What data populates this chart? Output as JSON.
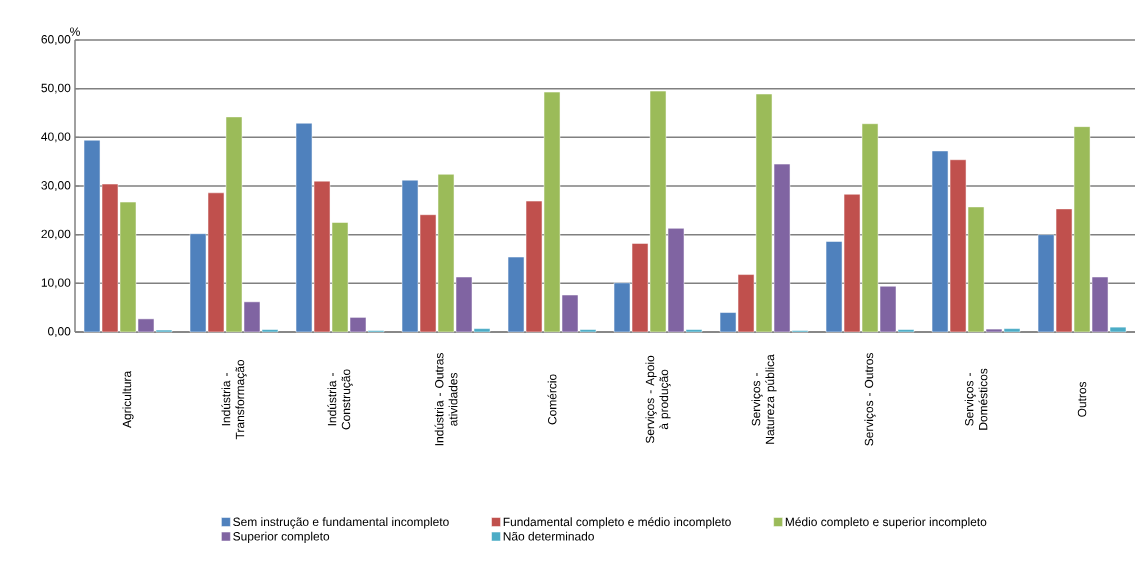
{
  "chart_data": {
    "type": "bar",
    "ylabel": "%",
    "categories": [
      "Agricultura",
      "Indústria - Transformação",
      "Indústria - Construção",
      "Indústria - Outras atividades",
      "Comércio",
      "Serviços - Apoio à produção",
      "Serviços - Natureza pública",
      "Serviços - Outros",
      "Serviços - Domésticos",
      "Outros"
    ],
    "series": [
      {
        "name": "Sem instrução e fundamental incompleto",
        "color": "#4f81bd",
        "values": [
          39.4,
          20.2,
          42.9,
          31.2,
          15.4,
          10.1,
          4.0,
          18.6,
          37.2,
          20.0
        ]
      },
      {
        "name": "Fundamental completo e médio incompleto",
        "color": "#c0504d",
        "values": [
          30.4,
          28.6,
          31.0,
          24.1,
          26.9,
          18.2,
          11.8,
          28.3,
          35.4,
          25.3
        ]
      },
      {
        "name": "Médio completo e superior incompleto",
        "color": "#9bbb59",
        "values": [
          26.7,
          44.2,
          22.5,
          32.4,
          49.3,
          49.5,
          48.9,
          42.8,
          25.7,
          42.2
        ]
      },
      {
        "name": "Superior completo",
        "color": "#8064a2",
        "values": [
          2.7,
          6.2,
          3.0,
          11.3,
          7.6,
          21.3,
          34.5,
          9.4,
          0.6,
          11.3
        ]
      },
      {
        "name": "Não determinado",
        "color": "#4bacc6",
        "values": [
          0.4,
          0.5,
          0.3,
          0.7,
          0.5,
          0.5,
          0.3,
          0.5,
          0.7,
          1.0
        ]
      }
    ],
    "ylim": [
      0,
      60
    ],
    "yticks": [
      {
        "value": 0,
        "label": "0,00"
      },
      {
        "value": 10,
        "label": "10,00"
      },
      {
        "value": 20,
        "label": "20,00"
      },
      {
        "value": 30,
        "label": "30,00"
      },
      {
        "value": 40,
        "label": "40,00"
      },
      {
        "value": 50,
        "label": "50,00"
      },
      {
        "value": 60,
        "label": "60,00"
      }
    ],
    "grid": "y",
    "legend": "bottom"
  }
}
